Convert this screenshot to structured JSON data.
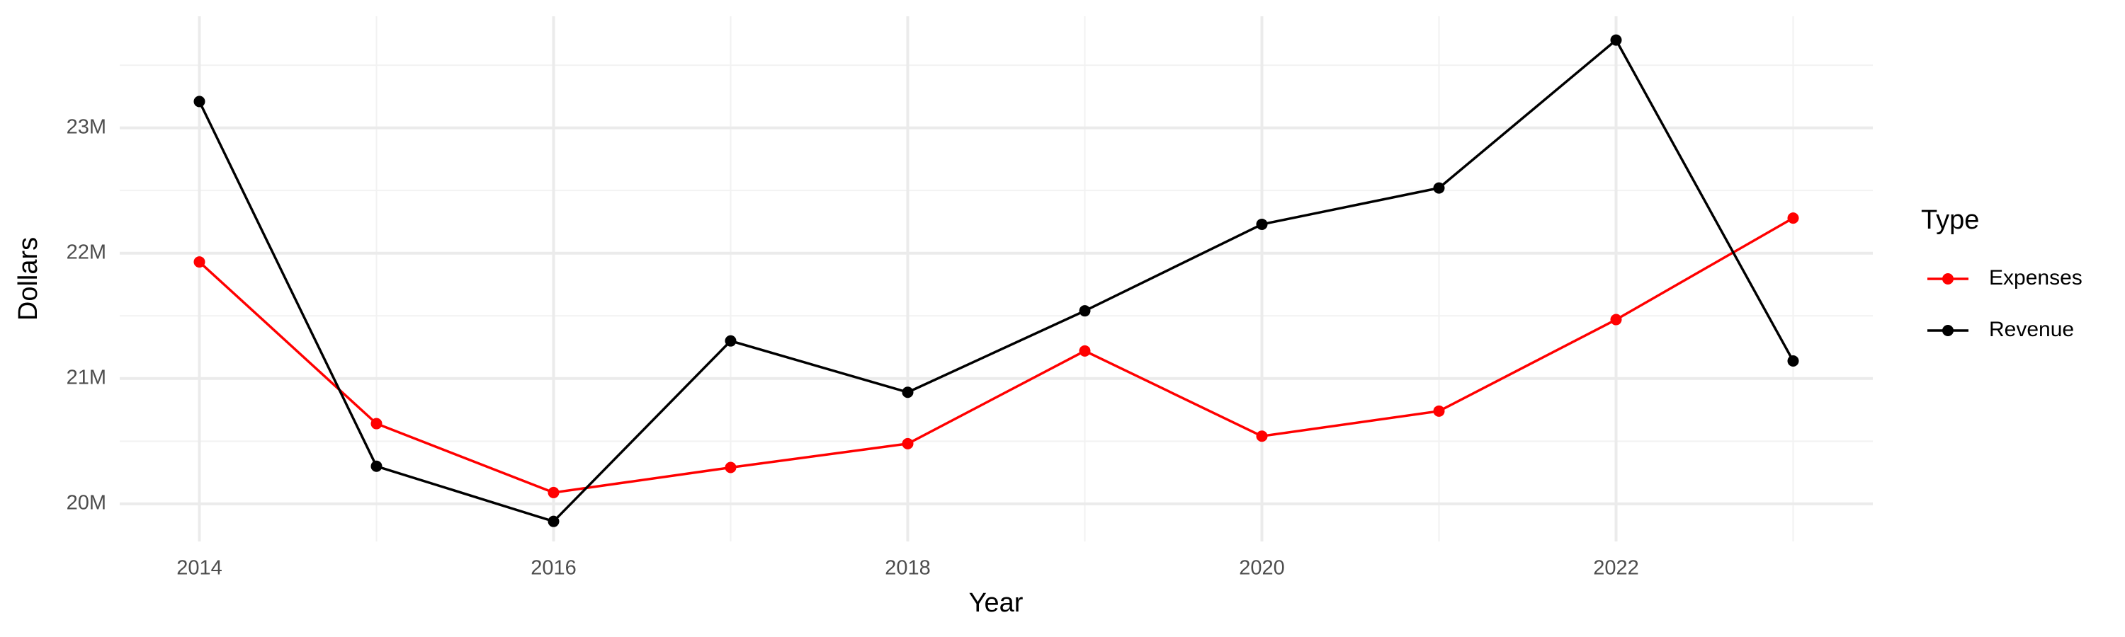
{
  "chart_data": {
    "type": "line",
    "x_label": "Year",
    "y_label": "Dollars",
    "legend_title": "Type",
    "x": [
      2014,
      2015,
      2016,
      2017,
      2018,
      2019,
      2020,
      2021,
      2022,
      2023
    ],
    "series": [
      {
        "name": "Expenses",
        "color": "#ff0000",
        "values": [
          21930000,
          20640000,
          20090000,
          20290000,
          20480000,
          21220000,
          20540000,
          20740000,
          21470000,
          22280000
        ]
      },
      {
        "name": "Revenue",
        "color": "#000000",
        "values": [
          23210000,
          20300000,
          19860000,
          21300000,
          20890000,
          21540000,
          22230000,
          22520000,
          23700000,
          21140000
        ]
      }
    ],
    "xlim": [
      2013.55,
      2023.45
    ],
    "xticks": [
      2014,
      2016,
      2018,
      2020,
      2022
    ],
    "ylim": [
      19700000,
      23890000
    ],
    "yticks": [
      {
        "value": 20000000,
        "label": "20M"
      },
      {
        "value": 21000000,
        "label": "21M"
      },
      {
        "value": 22000000,
        "label": "22M"
      },
      {
        "value": 23000000,
        "label": "23M"
      }
    ],
    "grid": true,
    "legend": "right"
  }
}
